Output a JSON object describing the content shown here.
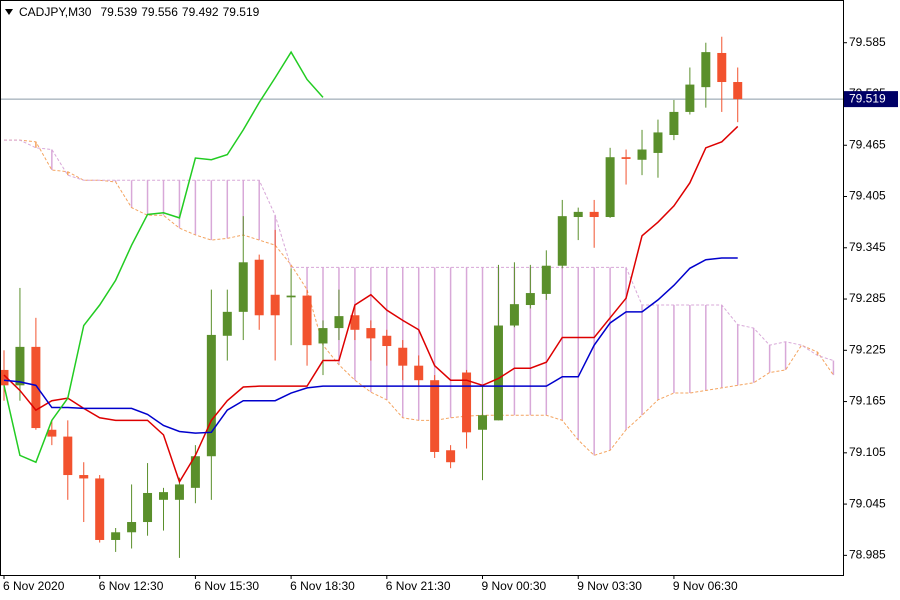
{
  "chart_data": {
    "type": "candlestick",
    "title": "CADJPY,M30",
    "candles": {
      "up_color": "#5a8f2b",
      "down_color": "#f2522e",
      "open": [
        79.202,
        79.184,
        79.229,
        79.132,
        79.124,
        79.079,
        79.075,
        79.003,
        79.012,
        79.024,
        79.05,
        79.05,
        79.064,
        79.101,
        79.242,
        79.27,
        79.331,
        79.29,
        79.287,
        79.289,
        79.233,
        79.251,
        79.266,
        79.251,
        79.242,
        79.228,
        79.207,
        79.19,
        79.108,
        79.199,
        79.132,
        79.143,
        79.254,
        79.278,
        79.291,
        79.324,
        79.381,
        79.387,
        79.381,
        79.451,
        79.448,
        79.456,
        79.477,
        79.504,
        79.533,
        79.573,
        79.539
      ],
      "high": [
        79.225,
        79.298,
        79.263,
        79.143,
        79.143,
        79.094,
        79.079,
        79.017,
        79.068,
        79.093,
        79.064,
        79.076,
        79.114,
        79.296,
        79.296,
        79.382,
        79.337,
        79.366,
        79.321,
        79.296,
        79.26,
        79.296,
        79.278,
        79.26,
        79.249,
        79.237,
        79.219,
        79.196,
        79.114,
        79.202,
        79.184,
        79.325,
        79.328,
        79.325,
        79.342,
        79.401,
        79.392,
        79.401,
        79.462,
        79.46,
        79.483,
        79.495,
        79.518,
        79.556,
        79.585,
        79.592,
        79.556
      ],
      "low": [
        79.166,
        79.166,
        79.132,
        79.114,
        79.05,
        79.024,
        79.0,
        78.989,
        78.993,
        79.008,
        79.014,
        78.982,
        79.046,
        79.05,
        79.213,
        79.237,
        79.249,
        79.213,
        79.231,
        79.207,
        79.196,
        79.237,
        79.237,
        79.213,
        79.207,
        79.19,
        79.184,
        79.099,
        79.087,
        79.11,
        79.073,
        79.143,
        79.252,
        79.274,
        79.284,
        79.321,
        79.354,
        79.345,
        79.38,
        79.419,
        79.43,
        79.427,
        79.471,
        79.501,
        79.509,
        79.504,
        79.492
      ],
      "close": [
        79.184,
        79.229,
        79.134,
        79.124,
        79.079,
        79.075,
        79.003,
        79.012,
        79.024,
        79.058,
        79.059,
        79.068,
        79.101,
        79.243,
        79.27,
        79.328,
        79.266,
        79.266,
        79.289,
        79.231,
        79.251,
        79.265,
        79.249,
        79.239,
        79.23,
        79.207,
        79.19,
        79.106,
        79.094,
        79.129,
        79.149,
        79.254,
        79.279,
        79.292,
        79.324,
        79.382,
        79.387,
        79.381,
        79.451,
        79.449,
        79.46,
        79.48,
        79.504,
        79.536,
        79.574,
        79.539,
        79.519
      ]
    },
    "series": [
      {
        "color": "#dd0000",
        "style": "solid",
        "values": [
          79.196,
          79.178,
          79.155,
          79.166,
          79.169,
          79.157,
          79.146,
          79.143,
          79.143,
          79.143,
          79.126,
          79.071,
          79.102,
          79.143,
          79.166,
          79.182,
          79.183,
          79.183,
          79.183,
          79.183,
          79.213,
          79.213,
          79.278,
          79.29,
          79.272,
          79.26,
          79.249,
          79.207,
          79.19,
          79.19,
          79.184,
          79.192,
          79.204,
          79.204,
          79.211,
          79.24,
          79.24,
          79.24,
          79.263,
          79.286,
          79.359,
          79.375,
          79.394,
          79.421,
          79.462,
          79.469,
          79.487
        ]
      },
      {
        "color": "#0000cc",
        "style": "solid",
        "values": [
          79.19,
          79.188,
          79.184,
          79.158,
          79.158,
          79.157,
          79.157,
          79.157,
          79.157,
          79.15,
          79.137,
          79.13,
          79.128,
          79.129,
          79.155,
          79.166,
          79.166,
          79.166,
          79.175,
          79.181,
          79.183,
          79.183,
          79.183,
          79.183,
          79.183,
          79.183,
          79.183,
          79.183,
          79.183,
          79.183,
          79.183,
          79.183,
          79.183,
          79.183,
          79.183,
          79.194,
          79.194,
          79.231,
          79.257,
          79.27,
          79.27,
          79.284,
          79.301,
          79.321,
          79.331,
          79.333,
          79.333
        ]
      },
      {
        "color": "#22cc22",
        "style": "solid",
        "values": [
          79.184,
          79.102,
          79.094,
          79.143,
          79.169,
          79.254,
          79.278,
          79.307,
          79.348,
          79.384,
          79.386,
          79.38,
          79.45,
          79.448,
          79.454,
          79.483,
          79.515,
          79.544,
          79.574,
          79.542,
          79.521,
          null,
          null,
          null,
          null,
          null,
          null,
          null,
          null,
          null,
          null,
          null,
          null,
          null,
          null,
          null,
          null,
          null,
          null,
          null,
          null,
          null,
          null,
          null,
          null,
          null,
          null
        ]
      },
      {
        "color": "#f4a460",
        "style": "dashed",
        "values": [
          79.471,
          79.471,
          79.469,
          79.436,
          79.434,
          79.424,
          79.424,
          79.422,
          79.392,
          79.383,
          79.383,
          79.368,
          79.36,
          79.354,
          79.356,
          79.36,
          79.354,
          79.348,
          79.325,
          79.296,
          79.231,
          79.208,
          79.19,
          79.176,
          79.167,
          79.146,
          79.143,
          79.143,
          79.146,
          79.148,
          79.149,
          79.149,
          79.149,
          79.149,
          79.149,
          79.143,
          79.12,
          79.102,
          79.108,
          79.132,
          79.149,
          79.167,
          79.175,
          79.175,
          79.178,
          79.181,
          79.184,
          79.187,
          79.199,
          79.202,
          79.231,
          79.223,
          79.196
        ]
      },
      {
        "color": "#d8a8d8",
        "style": "dashed",
        "values": [
          79.471,
          79.471,
          79.462,
          79.46,
          79.43,
          79.424,
          79.424,
          79.424,
          79.424,
          79.424,
          79.424,
          79.424,
          79.424,
          79.424,
          79.424,
          79.424,
          79.424,
          79.383,
          79.322,
          79.322,
          79.322,
          79.322,
          79.322,
          79.322,
          79.322,
          79.322,
          79.322,
          79.322,
          79.322,
          79.322,
          79.322,
          79.322,
          79.322,
          79.322,
          79.322,
          79.322,
          79.322,
          79.322,
          79.322,
          79.322,
          79.278,
          79.278,
          79.278,
          79.278,
          79.278,
          79.278,
          79.255,
          79.251,
          79.231,
          79.235,
          79.231,
          79.219,
          79.213
        ]
      }
    ],
    "cloud": {
      "between": [
        3,
        4
      ]
    },
    "price_line_color": "#8a9aa6",
    "price_label_color": "#000066",
    "xlim": [
      -0.25,
      52.6
    ],
    "xticks": [
      {
        "value": 0,
        "label": "6 Nov 2020"
      },
      {
        "value": 6,
        "label": "6 Nov 12:30"
      },
      {
        "value": 12,
        "label": "6 Nov 15:30"
      },
      {
        "value": 18,
        "label": "6 Nov 18:30"
      },
      {
        "value": 24,
        "label": "6 Nov 21:30"
      },
      {
        "value": 30,
        "label": "9 Nov 00:30"
      },
      {
        "value": 36,
        "label": "9 Nov 03:30"
      },
      {
        "value": 42,
        "label": "9 Nov 06:30"
      }
    ],
    "ylim": [
      78.962,
      79.635
    ],
    "yticks": [
      79.585,
      79.525,
      79.465,
      79.405,
      79.345,
      79.285,
      79.225,
      79.165,
      79.105,
      79.045,
      78.985
    ],
    "grid": false
  }
}
